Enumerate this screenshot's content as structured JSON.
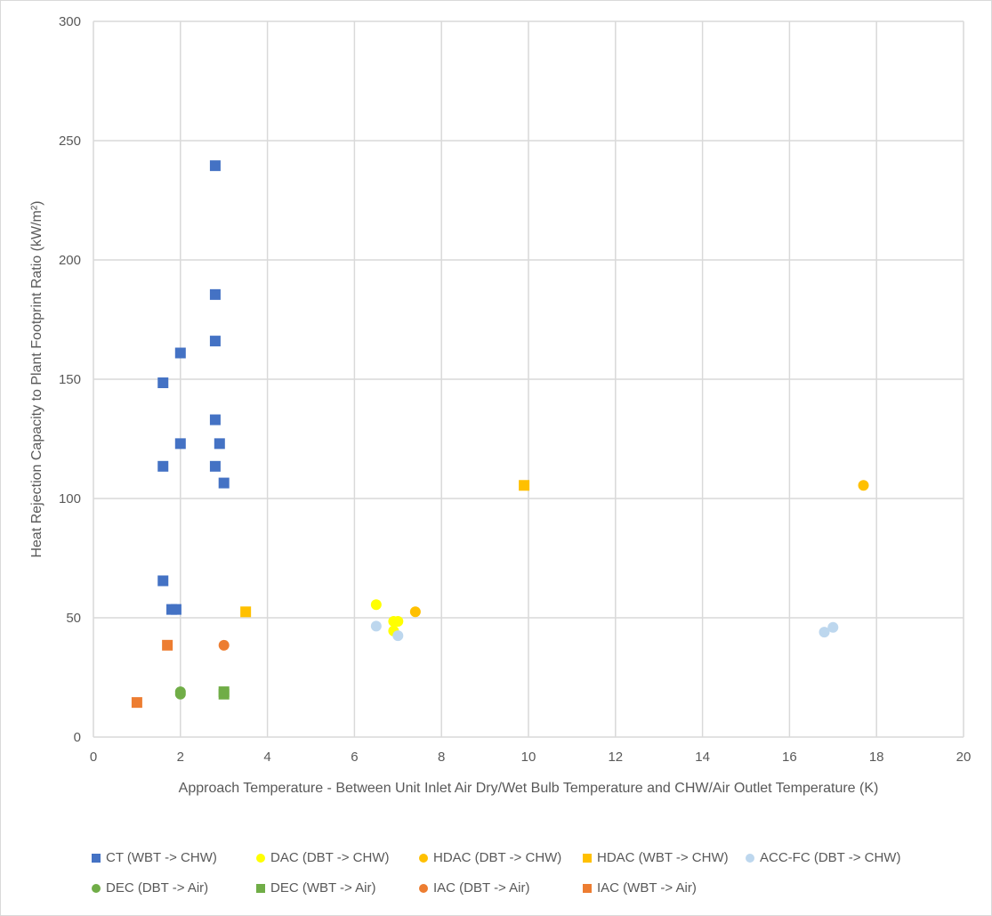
{
  "chart_data": {
    "type": "scatter",
    "title": "",
    "xlabel": "Approach Temperature - Between Unit Inlet Air Dry/Wet Bulb Temperature and CHW/Air Outlet Temperature (K)",
    "ylabel": "Heat Rejection Capacity to Plant Footprint Ratio (kW/m²)",
    "xlim": [
      0,
      20
    ],
    "ylim": [
      0,
      300
    ],
    "xticks": [
      0,
      2,
      4,
      6,
      8,
      10,
      12,
      14,
      16,
      18,
      20
    ],
    "yticks": [
      0,
      50,
      100,
      150,
      200,
      250,
      300
    ],
    "grid": true,
    "legend_position": "bottom",
    "series": [
      {
        "name": "CT (WBT -> CHW)",
        "marker": "square",
        "color": "#4472C4",
        "points": [
          [
            2.8,
            239.5
          ],
          [
            2.8,
            185.5
          ],
          [
            2.8,
            166
          ],
          [
            2.0,
            161
          ],
          [
            1.6,
            148.5
          ],
          [
            2.8,
            133
          ],
          [
            2.0,
            123
          ],
          [
            2.9,
            123
          ],
          [
            1.6,
            113.5
          ],
          [
            2.8,
            113.5
          ],
          [
            3.0,
            106.5
          ],
          [
            1.6,
            65.5
          ],
          [
            1.8,
            53.5
          ],
          [
            1.9,
            53.5
          ]
        ]
      },
      {
        "name": "DAC (DBT -> CHW)",
        "marker": "circle",
        "color": "#FFFF00",
        "points": [
          [
            6.5,
            55.5
          ],
          [
            6.9,
            48.5
          ],
          [
            7.0,
            48.5
          ],
          [
            6.9,
            44.5
          ]
        ]
      },
      {
        "name": "HDAC (DBT -> CHW)",
        "marker": "circle",
        "color": "#FFC000",
        "points": [
          [
            7.4,
            52.5
          ],
          [
            17.7,
            105.5
          ]
        ]
      },
      {
        "name": "HDAC (WBT -> CHW)",
        "marker": "square",
        "color": "#FFC000",
        "points": [
          [
            3.5,
            52.5
          ],
          [
            9.9,
            105.5
          ]
        ]
      },
      {
        "name": "ACC-FC (DBT -> CHW)",
        "marker": "circle",
        "color": "#BDD7EE",
        "points": [
          [
            6.5,
            46.5
          ],
          [
            7.0,
            42.5
          ],
          [
            16.8,
            44
          ],
          [
            17.0,
            46
          ]
        ]
      },
      {
        "name": "DEC (DBT -> Air)",
        "marker": "circle",
        "color": "#70AD47",
        "points": [
          [
            2.0,
            19
          ],
          [
            2.0,
            18
          ]
        ]
      },
      {
        "name": "DEC (WBT -> Air)",
        "marker": "square",
        "color": "#70AD47",
        "points": [
          [
            3.0,
            19
          ],
          [
            3.0,
            18
          ]
        ]
      },
      {
        "name": "IAC (DBT -> Air)",
        "marker": "circle",
        "color": "#ED7D31",
        "points": [
          [
            3.0,
            38.5
          ]
        ]
      },
      {
        "name": "IAC (WBT -> Air)",
        "marker": "square",
        "color": "#ED7D31",
        "points": [
          [
            1.7,
            38.5
          ],
          [
            1.0,
            14.5
          ]
        ]
      }
    ]
  }
}
